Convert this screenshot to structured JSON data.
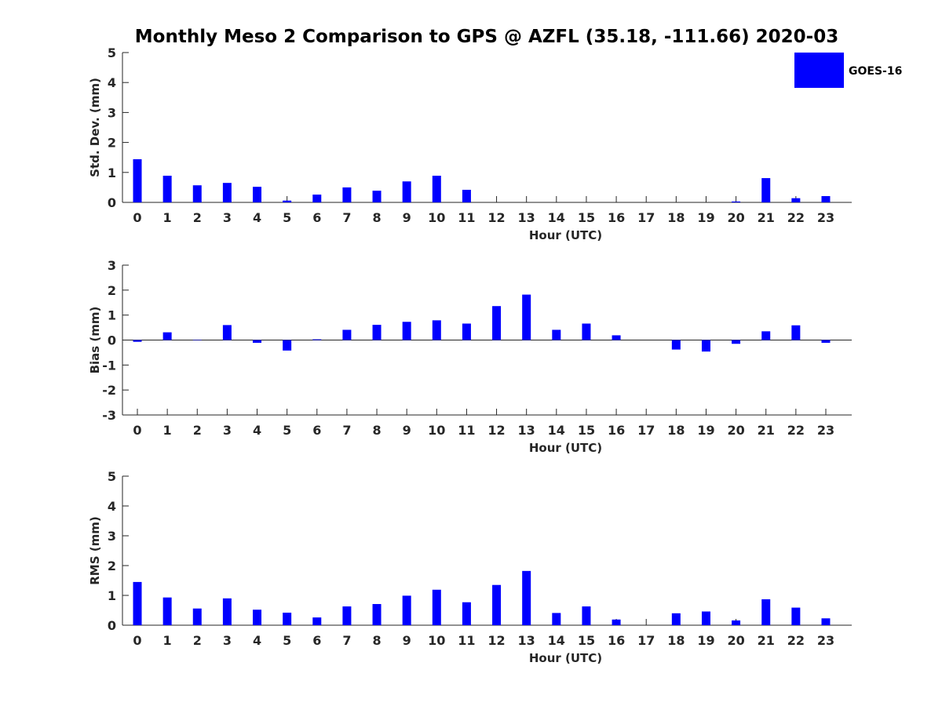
{
  "title": "Monthly Meso 2 Comparison to GPS @ AZFL (35.18, -111.66) 2020-03",
  "legend": {
    "label": "GOES-16",
    "color": "#0000ff",
    "placement": "top-right"
  },
  "chart_data": [
    {
      "type": "bar",
      "xlabel": "Hour (UTC)",
      "ylabel": "Std. Dev. (mm)",
      "ylim": [
        0,
        5
      ],
      "yticks": [
        "0",
        "1",
        "2",
        "3",
        "4",
        "5"
      ],
      "categories": [
        "0",
        "1",
        "2",
        "3",
        "4",
        "5",
        "6",
        "7",
        "8",
        "9",
        "10",
        "11",
        "12",
        "13",
        "14",
        "15",
        "16",
        "17",
        "18",
        "19",
        "20",
        "21",
        "22",
        "23"
      ],
      "series": [
        {
          "name": "GOES-16",
          "values": [
            1.44,
            0.89,
            0.57,
            0.65,
            0.52,
            0.06,
            0.26,
            0.5,
            0.39,
            0.7,
            0.89,
            0.42,
            null,
            null,
            null,
            null,
            null,
            null,
            null,
            null,
            0.03,
            0.81,
            0.14,
            0.21
          ]
        }
      ]
    },
    {
      "type": "bar",
      "xlabel": "Hour (UTC)",
      "ylabel": "Bias (mm)",
      "ylim": [
        -3,
        3
      ],
      "yticks": [
        "-3",
        "-2",
        "-1",
        "0",
        "1",
        "2",
        "3"
      ],
      "categories": [
        "0",
        "1",
        "2",
        "3",
        "4",
        "5",
        "6",
        "7",
        "8",
        "9",
        "10",
        "11",
        "12",
        "13",
        "14",
        "15",
        "16",
        "17",
        "18",
        "19",
        "20",
        "21",
        "22",
        "23"
      ],
      "series": [
        {
          "name": "GOES-16",
          "values": [
            -0.07,
            0.31,
            0.0,
            0.6,
            -0.11,
            -0.42,
            0.03,
            0.41,
            0.61,
            0.73,
            0.79,
            0.66,
            1.36,
            1.82,
            0.41,
            0.66,
            0.19,
            null,
            -0.38,
            -0.46,
            -0.15,
            0.35,
            0.59,
            -0.11
          ]
        }
      ]
    },
    {
      "type": "bar",
      "xlabel": "Hour (UTC)",
      "ylabel": "RMS (mm)",
      "ylim": [
        0,
        5
      ],
      "yticks": [
        "0",
        "1",
        "2",
        "3",
        "4",
        "5"
      ],
      "categories": [
        "0",
        "1",
        "2",
        "3",
        "4",
        "5",
        "6",
        "7",
        "8",
        "9",
        "10",
        "11",
        "12",
        "13",
        "14",
        "15",
        "16",
        "17",
        "18",
        "19",
        "20",
        "21",
        "22",
        "23"
      ],
      "series": [
        {
          "name": "GOES-16",
          "values": [
            1.45,
            0.93,
            0.56,
            0.9,
            0.52,
            0.42,
            0.26,
            0.63,
            0.71,
            0.99,
            1.19,
            0.77,
            1.35,
            1.82,
            0.41,
            0.63,
            0.19,
            null,
            0.4,
            0.46,
            0.16,
            0.87,
            0.59,
            0.23
          ]
        }
      ]
    }
  ]
}
